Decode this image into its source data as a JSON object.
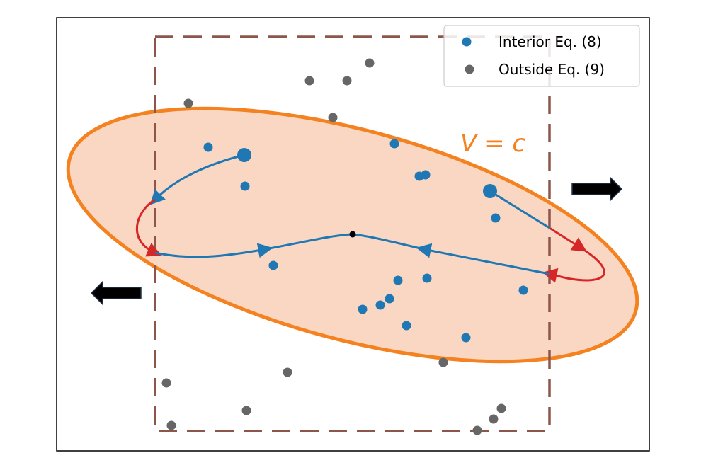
{
  "figure": {
    "level_set_label": "V = c",
    "legend": {
      "interior_label": "Interior Eq. (8)",
      "outside_label": "Outside Eq. (9)"
    },
    "colors": {
      "interior": "#1f77b4",
      "outside": "#666666",
      "ellipse_edge": "#f58220",
      "ellipse_fill": "#f9d7c2",
      "box": "#8c564b",
      "exit_trajectory": "#d62728",
      "arrow": "#000000"
    },
    "icons": [
      "arrow-right-icon",
      "arrow-left-icon"
    ]
  }
}
